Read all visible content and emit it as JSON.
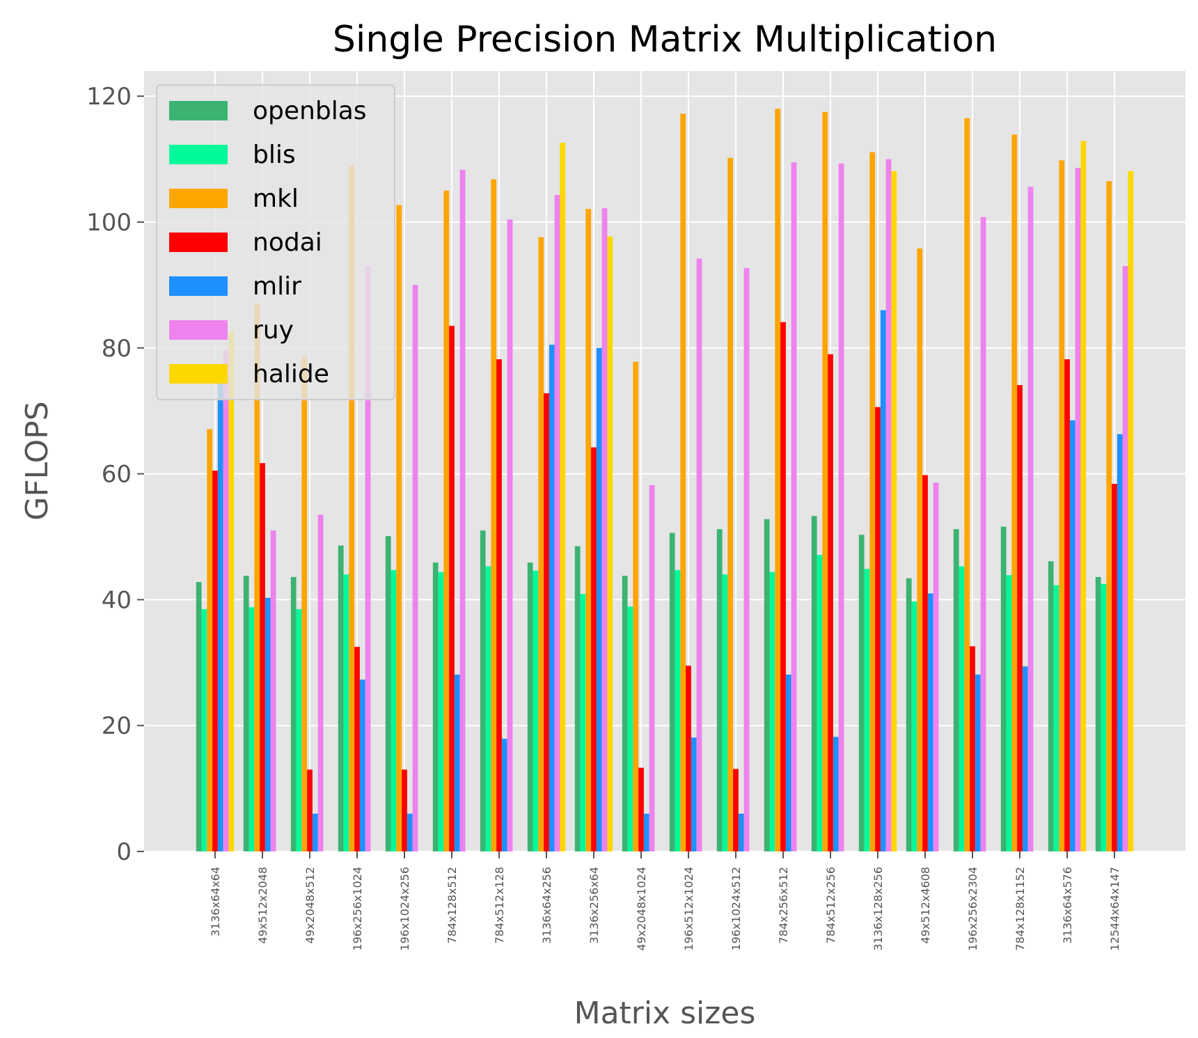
{
  "chart_data": {
    "type": "bar",
    "title": "Single Precision Matrix Multiplication",
    "xlabel": "Matrix sizes",
    "ylabel": "GFLOPS",
    "ylim": [
      0,
      124
    ],
    "yticks": [
      0,
      20,
      40,
      60,
      80,
      100,
      120
    ],
    "grid": true,
    "legend_position": "top-left",
    "categories": [
      "3136x64x64",
      "49x512x2048",
      "49x2048x512",
      "196x256x1024",
      "196x1024x256",
      "784x128x512",
      "784x512x128",
      "3136x64x256",
      "3136x256x64",
      "49x2048x1024",
      "196x512x1024",
      "196x1024x512",
      "784x256x512",
      "784x512x256",
      "3136x128x256",
      "49x512x4608",
      "196x256x2304",
      "784x128x1152",
      "3136x64x576",
      "12544x64x147"
    ],
    "series": [
      {
        "name": "openblas",
        "color": "#3CB371",
        "values": [
          42.8,
          43.8,
          43.6,
          48.6,
          50.1,
          45.9,
          51.0,
          45.9,
          48.5,
          43.8,
          50.6,
          51.2,
          52.8,
          53.3,
          50.3,
          43.4,
          51.2,
          51.6,
          46.1,
          43.6
        ]
      },
      {
        "name": "blis",
        "color": "#00FA9A",
        "values": [
          38.5,
          38.8,
          38.5,
          44.0,
          44.7,
          44.4,
          45.3,
          44.6,
          40.9,
          38.9,
          44.7,
          44.0,
          44.4,
          47.1,
          44.9,
          39.7,
          45.3,
          43.9,
          42.3,
          42.5
        ]
      },
      {
        "name": "mkl",
        "color": "#FFA500",
        "values": [
          67.1,
          87.1,
          78.6,
          109.0,
          102.7,
          105.0,
          106.8,
          97.6,
          102.1,
          77.8,
          117.2,
          110.2,
          118.0,
          117.5,
          111.1,
          95.8,
          116.5,
          113.9,
          109.8,
          106.5
        ]
      },
      {
        "name": "nodai",
        "color": "#FF0000",
        "values": [
          60.5,
          61.7,
          13.0,
          32.5,
          13.0,
          83.5,
          78.2,
          72.8,
          64.2,
          13.3,
          29.5,
          13.1,
          84.1,
          79.0,
          70.6,
          59.8,
          32.6,
          74.1,
          78.2,
          58.4
        ]
      },
      {
        "name": "mlir",
        "color": "#1E90FF",
        "values": [
          75.0,
          40.3,
          6.0,
          27.3,
          6.0,
          28.1,
          17.9,
          80.5,
          80.0,
          6.0,
          18.1,
          6.0,
          28.1,
          18.2,
          86.0,
          41.0,
          28.1,
          29.4,
          68.5,
          66.3
        ]
      },
      {
        "name": "ruy",
        "color": "#EE82EE",
        "values": [
          79.6,
          51.0,
          53.5,
          93.0,
          90.0,
          108.3,
          100.4,
          104.3,
          102.2,
          58.2,
          94.2,
          92.7,
          109.5,
          109.3,
          110.0,
          58.6,
          100.8,
          105.6,
          108.6,
          93.0
        ]
      },
      {
        "name": "halide",
        "color": "#FFD700",
        "values": [
          82.6,
          0,
          0,
          0,
          0,
          0,
          0,
          112.6,
          97.7,
          0,
          0,
          0,
          0,
          0,
          108.1,
          0,
          0,
          0,
          112.9,
          108.1
        ]
      }
    ]
  }
}
